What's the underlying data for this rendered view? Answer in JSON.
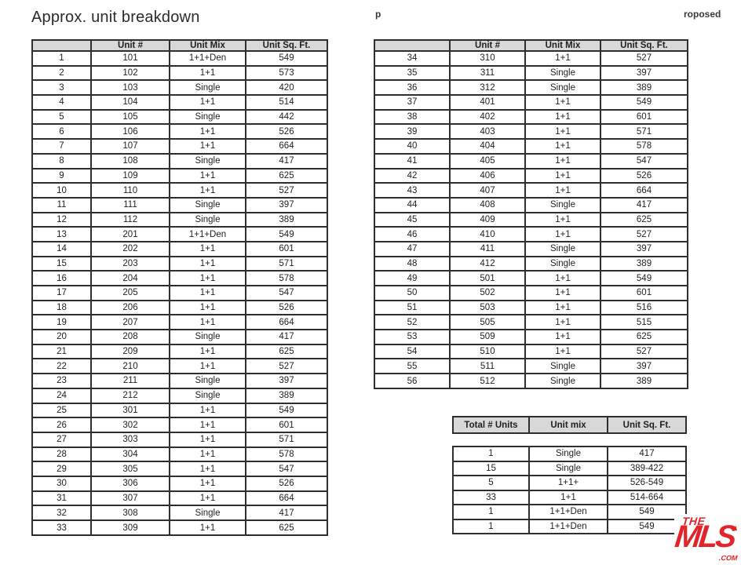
{
  "page": {
    "title": "Approx. unit breakdown",
    "fragment_p": "p",
    "fragment_roposed": "roposed"
  },
  "colors": {
    "header_bg": "#d8d8d8",
    "border": "#2e2e2e",
    "text": "#1f1f1f",
    "logo_red": "#e2242b"
  },
  "left_table": {
    "headers": [
      "",
      "Unit #",
      "Unit Mix",
      "Unit Sq. Ft."
    ],
    "rows": [
      [
        "1",
        "101",
        "1+1+Den",
        "549"
      ],
      [
        "2",
        "102",
        "1+1",
        "573"
      ],
      [
        "3",
        "103",
        "Single",
        "420"
      ],
      [
        "4",
        "104",
        "1+1",
        "514"
      ],
      [
        "5",
        "105",
        "Single",
        "442"
      ],
      [
        "6",
        "106",
        "1+1",
        "526"
      ],
      [
        "7",
        "107",
        "1+1",
        "664"
      ],
      [
        "8",
        "108",
        "Single",
        "417"
      ],
      [
        "9",
        "109",
        "1+1",
        "625"
      ],
      [
        "10",
        "110",
        "1+1",
        "527"
      ],
      [
        "11",
        "111",
        "Single",
        "397"
      ],
      [
        "12",
        "112",
        "Single",
        "389"
      ],
      [
        "13",
        "201",
        "1+1+Den",
        "549"
      ],
      [
        "14",
        "202",
        "1+1",
        "601"
      ],
      [
        "15",
        "203",
        "1+1",
        "571"
      ],
      [
        "16",
        "204",
        "1+1",
        "578"
      ],
      [
        "17",
        "205",
        "1+1",
        "547"
      ],
      [
        "18",
        "206",
        "1+1",
        "526"
      ],
      [
        "19",
        "207",
        "1+1",
        "664"
      ],
      [
        "20",
        "208",
        "Single",
        "417"
      ],
      [
        "21",
        "209",
        "1+1",
        "625"
      ],
      [
        "22",
        "210",
        "1+1",
        "527"
      ],
      [
        "23",
        "211",
        "Single",
        "397"
      ],
      [
        "24",
        "212",
        "Single",
        "389"
      ],
      [
        "25",
        "301",
        "1+1",
        "549"
      ],
      [
        "26",
        "302",
        "1+1",
        "601"
      ],
      [
        "27",
        "303",
        "1+1",
        "571"
      ],
      [
        "28",
        "304",
        "1+1",
        "578"
      ],
      [
        "29",
        "305",
        "1+1",
        "547"
      ],
      [
        "30",
        "306",
        "1+1",
        "526"
      ],
      [
        "31",
        "307",
        "1+1",
        "664"
      ],
      [
        "32",
        "308",
        "Single",
        "417"
      ],
      [
        "33",
        "309",
        "1+1",
        "625"
      ]
    ]
  },
  "right_table": {
    "headers": [
      "",
      "Unit #",
      "Unit Mix",
      "Unit Sq. Ft."
    ],
    "rows": [
      [
        "34",
        "310",
        "1+1",
        "527"
      ],
      [
        "35",
        "311",
        "Single",
        "397"
      ],
      [
        "36",
        "312",
        "Single",
        "389"
      ],
      [
        "37",
        "401",
        "1+1",
        "549"
      ],
      [
        "38",
        "402",
        "1+1",
        "601"
      ],
      [
        "39",
        "403",
        "1+1",
        "571"
      ],
      [
        "40",
        "404",
        "1+1",
        "578"
      ],
      [
        "41",
        "405",
        "1+1",
        "547"
      ],
      [
        "42",
        "406",
        "1+1",
        "526"
      ],
      [
        "43",
        "407",
        "1+1",
        "664"
      ],
      [
        "44",
        "408",
        "Single",
        "417"
      ],
      [
        "45",
        "409",
        "1+1",
        "625"
      ],
      [
        "46",
        "410",
        "1+1",
        "527"
      ],
      [
        "47",
        "411",
        "Single",
        "397"
      ],
      [
        "48",
        "412",
        "Single",
        "389"
      ],
      [
        "49",
        "501",
        "1+1",
        "549"
      ],
      [
        "50",
        "502",
        "1+1",
        "601"
      ],
      [
        "51",
        "503",
        "1+1",
        "516"
      ],
      [
        "52",
        "505",
        "1+1",
        "515"
      ],
      [
        "53",
        "509",
        "1+1",
        "625"
      ],
      [
        "54",
        "510",
        "1+1",
        "527"
      ],
      [
        "55",
        "511",
        "Single",
        "397"
      ],
      [
        "56",
        "512",
        "Single",
        "389"
      ]
    ]
  },
  "summary_table": {
    "headers": [
      "Total # Units",
      "Unit mix",
      "Unit Sq. Ft."
    ],
    "rows": [
      [
        "1",
        "Single",
        "417"
      ],
      [
        "15",
        "Single",
        "389-422"
      ],
      [
        "5",
        "1+1+",
        "526-549"
      ],
      [
        "33",
        "1+1",
        "514-664"
      ],
      [
        "1",
        "1+1+Den",
        "549"
      ],
      [
        "1",
        "1+1+Den",
        "549"
      ]
    ]
  },
  "logo": {
    "the": "THE",
    "mls": "MLS",
    "tm": "™",
    "com": ".COM",
    "color": "#e2242b"
  }
}
